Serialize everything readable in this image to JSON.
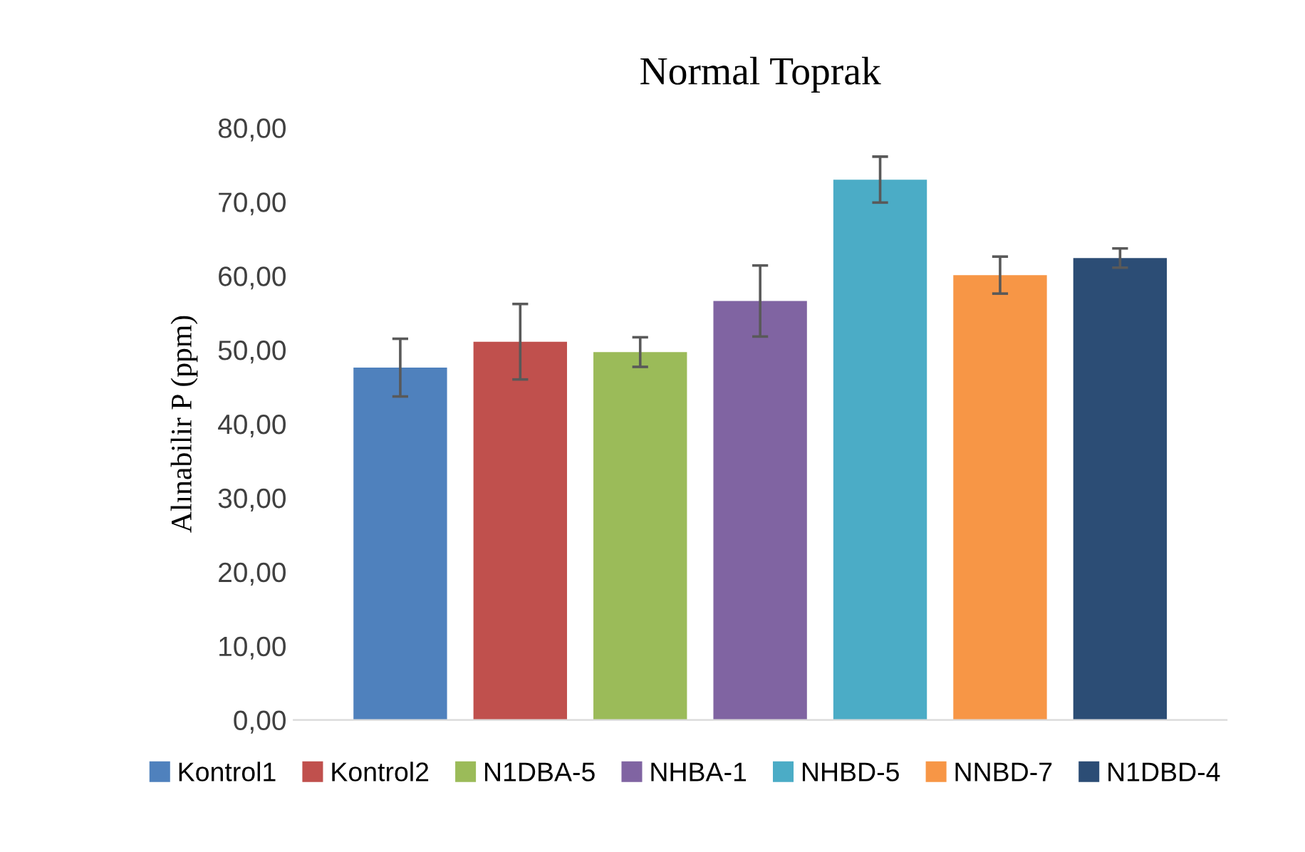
{
  "chart_data": {
    "type": "bar",
    "title": "Normal Toprak",
    "ylabel": "Alınabilir P (ppm)",
    "categories": [
      null
    ],
    "series": [
      {
        "name": "Kontrol1",
        "color": "#4f81bd",
        "values": [
          47.6
        ],
        "errors": [
          3.9
        ]
      },
      {
        "name": "Kontrol2",
        "color": "#c0504d",
        "values": [
          51.1
        ],
        "errors": [
          5.1
        ]
      },
      {
        "name": "N1DBA-5",
        "color": "#9bbb59",
        "values": [
          49.7
        ],
        "errors": [
          2.0
        ]
      },
      {
        "name": "NHBA-1",
        "color": "#8064a2",
        "values": [
          56.6
        ],
        "errors": [
          4.8
        ]
      },
      {
        "name": "NHBD-5",
        "color": "#4bacc6",
        "values": [
          73.0
        ],
        "errors": [
          3.1
        ]
      },
      {
        "name": "NNBD-7",
        "color": "#f79646",
        "values": [
          60.1
        ],
        "errors": [
          2.5
        ]
      },
      {
        "name": "N1DBD-4",
        "color": "#2c4d75",
        "values": [
          62.4
        ],
        "errors": [
          1.3
        ]
      }
    ],
    "ylim": [
      0,
      80
    ],
    "yticks": [
      {
        "value": 0,
        "label": "0,00"
      },
      {
        "value": 10,
        "label": "10,00"
      },
      {
        "value": 20,
        "label": "20,00"
      },
      {
        "value": 30,
        "label": "30,00"
      },
      {
        "value": 40,
        "label": "40,00"
      },
      {
        "value": 50,
        "label": "50,00"
      },
      {
        "value": 60,
        "label": "60,00"
      },
      {
        "value": 70,
        "label": "70,00"
      },
      {
        "value": 80,
        "label": "80,00"
      }
    ],
    "grid": false,
    "legend": "bottom"
  }
}
